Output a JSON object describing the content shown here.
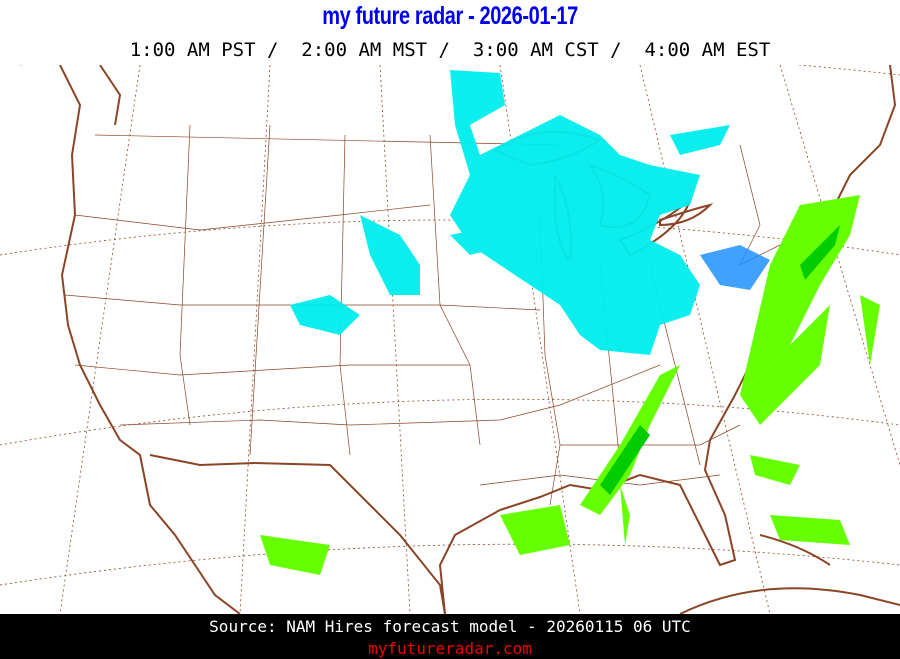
{
  "header": {
    "title": "my future radar - 2026-01-17",
    "times": "1:00 AM PST /  2:00 AM MST /  3:00 AM CST /  4:00 AM EST"
  },
  "footer": {
    "source": "Source: NAM Hires forecast model - 20260115 06 UTC",
    "site": "myfutureradar.com"
  },
  "colors": {
    "title": "#0000ee",
    "coastline": "#8b4526",
    "snow_light": "#00eeee",
    "snow_heavy": "#1e90ff",
    "rain_light": "#66ff00",
    "rain_moderate": "#00cc00",
    "site_link": "#ee0000"
  }
}
